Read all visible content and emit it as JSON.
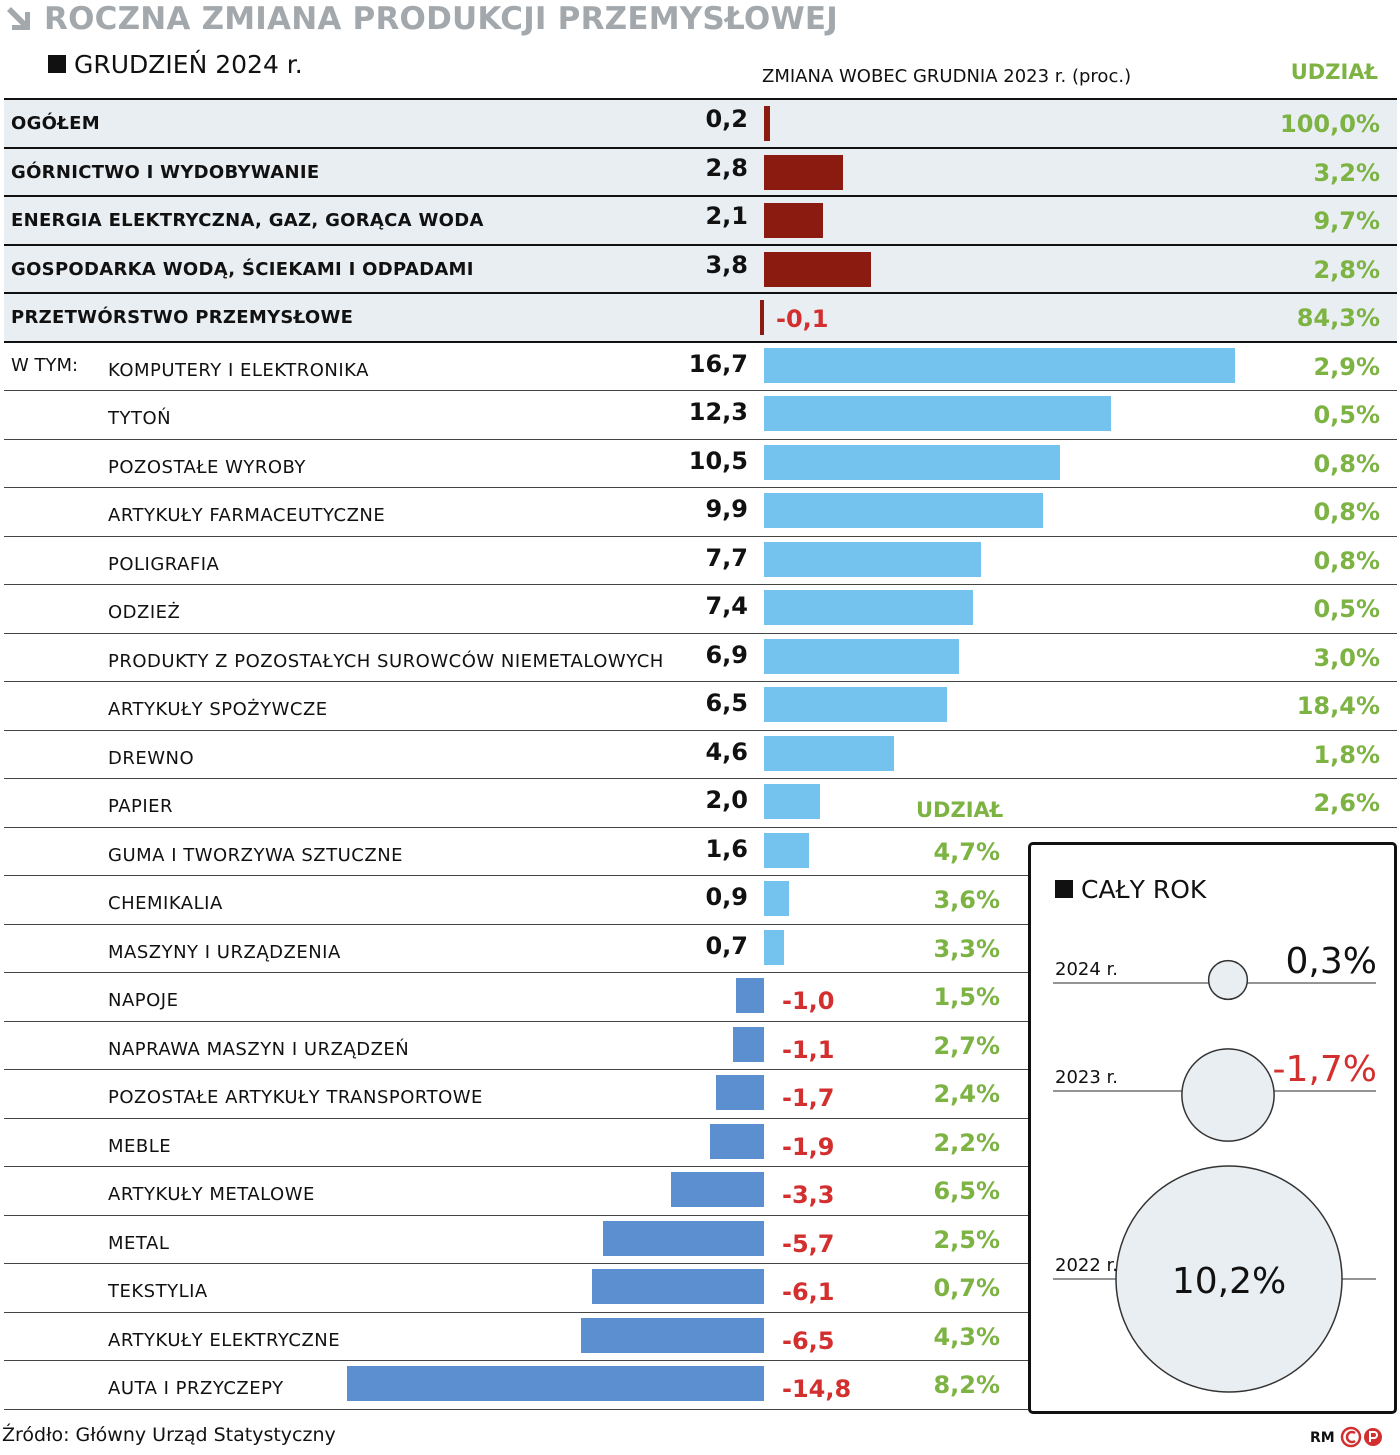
{
  "header": {
    "title": "ROCZNA ZMIANA PRODUKCJI PRZEMYSŁOWEJ",
    "subtitle": "GRUDZIEŃ 2024 r.",
    "axis_label": "ZMIANA WOBEC GRUDNIA 2023 r. (proc.)",
    "share_label": "UDZIAŁ"
  },
  "subsection_label": "W TYM:",
  "share_label_2": "UDZIAŁ",
  "chart_data": {
    "type": "bar",
    "orientation": "horizontal",
    "xlabel": "ZMIANA WOBEC GRUDNIA 2023 r. (proc.)",
    "categories": [
      "OGÓŁEM",
      "GÓRNICTWO I WYDOBYWANIE",
      "ENERGIA ELEKTRYCZNA, GAZ, GORĄCA WODA",
      "GOSPODARKA WODĄ, ŚCIEKAMI I ODPADAMI",
      "PRZETWÓRSTWO PRZEMYSŁOWE",
      "KOMPUTERY I ELEKTRONIKA",
      "TYTOŃ",
      "POZOSTAŁE WYROBY",
      "ARTYKUŁY FARMACEUTYCZNE",
      "POLIGRAFIA",
      "ODZIEŻ",
      "PRODUKTY Z POZOSTAŁYCH SUROWCÓW NIEMETALOWYCH",
      "ARTYKUŁY SPOŻYWCZE",
      "DREWNO",
      "PAPIER",
      "GUMA I TWORZYWA SZTUCZNE",
      "CHEMIKALIA",
      "MASZYNY I URZĄDZENIA",
      "NAPOJE",
      "NAPRAWA MASZYN I URZĄDZEŃ",
      "POZOSTAŁE ARTYKUŁY TRANSPORTOWE",
      "MEBLE",
      "ARTYKUŁY METALOWE",
      "METAL",
      "TEKSTYLIA",
      "ARTYKUŁY ELEKTRYCZNE",
      "AUTA I PRZYCZEPY"
    ],
    "values": [
      0.2,
      2.8,
      2.1,
      3.8,
      -0.1,
      16.7,
      12.3,
      10.5,
      9.9,
      7.7,
      7.4,
      6.9,
      6.5,
      4.6,
      2.0,
      1.6,
      0.9,
      0.7,
      -1.0,
      -1.1,
      -1.7,
      -1.9,
      -3.3,
      -5.7,
      -6.1,
      -6.5,
      -14.8
    ],
    "value_labels": [
      "0,2",
      "2,8",
      "2,1",
      "3,8",
      "-0,1",
      "16,7",
      "12,3",
      "10,5",
      "9,9",
      "7,7",
      "7,4",
      "6,9",
      "6,5",
      "4,6",
      "2,0",
      "1,6",
      "0,9",
      "0,7",
      "-1,0",
      "-1,1",
      "-1,7",
      "-1,9",
      "-3,3",
      "-5,7",
      "-6,1",
      "-6,5",
      "-14,8"
    ],
    "shares": [
      "100,0%",
      "3,2%",
      "9,7%",
      "2,8%",
      "84,3%",
      "2,9%",
      "0,5%",
      "0,8%",
      "0,8%",
      "0,8%",
      "0,5%",
      "3,0%",
      "18,4%",
      "1,8%",
      "2,6%",
      "4,7%",
      "3,6%",
      "3,3%",
      "1,5%",
      "2,7%",
      "2,4%",
      "2,2%",
      "6,5%",
      "2,5%",
      "0,7%",
      "4,3%",
      "8,2%"
    ],
    "total_rows": 5,
    "colors": {
      "total": "#8b1a10",
      "positive": "#74c3ee",
      "negative": "#5b8fcf",
      "negative_text": "#d32f2f",
      "share": "#7cb342"
    }
  },
  "full_year": {
    "title": "CAŁY ROK",
    "items": [
      {
        "year": "2024 r.",
        "value": 0.3,
        "label": "0,3%"
      },
      {
        "year": "2023 r.",
        "value": -1.7,
        "label": "-1,7%"
      },
      {
        "year": "2022 r.",
        "value": 10.2,
        "label": "10,2%"
      }
    ]
  },
  "footer": {
    "source": "Źródło: Główny Urząd Statystyczny",
    "credit": "RM"
  }
}
